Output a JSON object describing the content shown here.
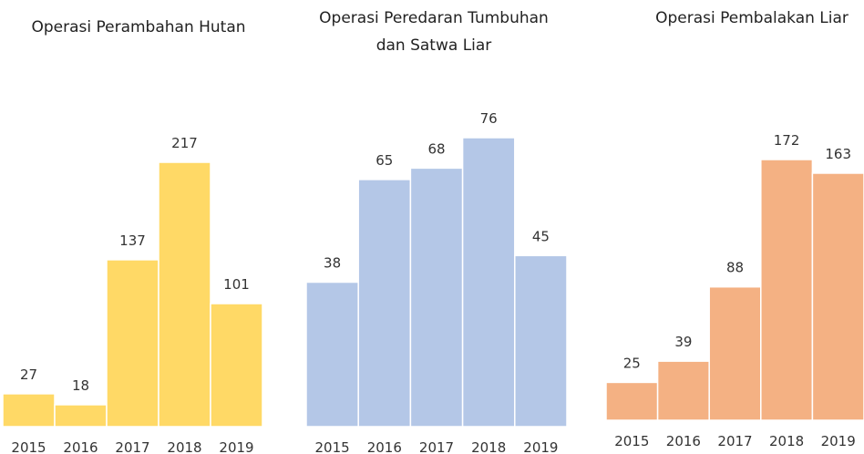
{
  "chart_data": [
    {
      "type": "bar",
      "title": "Operasi Perambahan Hutan",
      "color": "#ffd966",
      "categories": [
        "2015",
        "2016",
        "2017",
        "2018",
        "2019"
      ],
      "values": [
        27,
        18,
        137,
        217,
        101
      ]
    },
    {
      "type": "bar",
      "title": "Operasi Peredaran Tumbuhan dan Satwa Liar",
      "color": "#b4c7e7",
      "categories": [
        "2015",
        "2016",
        "2017",
        "2018",
        "2019"
      ],
      "values": [
        38,
        65,
        68,
        76,
        45
      ]
    },
    {
      "type": "bar",
      "title": "Operasi Pembalakan Liar",
      "color": "#f4b183",
      "categories": [
        "2015",
        "2016",
        "2017",
        "2018",
        "2019"
      ],
      "values": [
        25,
        39,
        88,
        172,
        163
      ]
    }
  ]
}
